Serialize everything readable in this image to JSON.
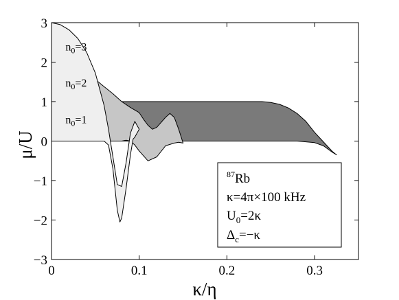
{
  "chart_data": {
    "type": "area",
    "xlabel": "κ/η",
    "ylabel": "μ/U",
    "xlim": [
      0,
      0.35
    ],
    "ylim": [
      -3,
      3
    ],
    "x_ticks": [
      0,
      0.1,
      0.2,
      0.3
    ],
    "x_tick_labels": [
      "0",
      "0.1",
      "0.2",
      "0.3"
    ],
    "y_ticks": [
      -3,
      -2,
      -1,
      0,
      1,
      2,
      3
    ],
    "y_tick_labels": [
      "−3",
      "−2",
      "−1",
      "0",
      "1",
      "2",
      "3"
    ],
    "grid": false,
    "bands": [
      {
        "label_base": "n",
        "label_sub": "0",
        "label_rest": "=1",
        "n0": 1,
        "fill": "#7a7a7a",
        "upper": {
          "x": [
            0,
            0.02,
            0.04,
            0.06,
            0.07,
            0.08,
            0.1,
            0.12,
            0.15,
            0.2,
            0.24,
            0.25,
            0.26,
            0.27,
            0.28,
            0.29,
            0.3,
            0.31,
            0.32,
            0.325
          ],
          "y": [
            1.0,
            1.0,
            1.0,
            1.0,
            1.0,
            1.0,
            1.0,
            1.0,
            1.0,
            1.0,
            1.0,
            0.98,
            0.93,
            0.84,
            0.7,
            0.5,
            0.22,
            -0.02,
            -0.26,
            -0.35
          ]
        },
        "lower": {
          "x": [
            0,
            0.04,
            0.08,
            0.12,
            0.16,
            0.2,
            0.24,
            0.26,
            0.28,
            0.3,
            0.31,
            0.32,
            0.325
          ],
          "y": [
            0.0,
            0.0,
            0.0,
            0.0,
            0.0,
            0.0,
            0.0,
            0.0,
            0.0,
            -0.04,
            -0.12,
            -0.28,
            -0.35
          ]
        }
      },
      {
        "label_base": "n",
        "label_sub": "0",
        "label_rest": "=2",
        "n0": 2,
        "fill": "#c6c6c6",
        "upper": {
          "x": [
            0,
            0.01,
            0.02,
            0.03,
            0.04,
            0.05,
            0.06,
            0.07,
            0.08,
            0.09,
            0.1,
            0.105,
            0.11,
            0.115,
            0.12,
            0.13,
            0.135,
            0.14,
            0.145,
            0.15
          ],
          "y": [
            2.0,
            1.98,
            1.93,
            1.85,
            1.72,
            1.56,
            1.38,
            1.2,
            1.0,
            0.85,
            0.72,
            0.55,
            0.4,
            0.3,
            0.35,
            0.6,
            0.7,
            0.6,
            0.3,
            -0.05
          ]
        },
        "lower": {
          "x": [
            0,
            0.03,
            0.06,
            0.075,
            0.08,
            0.085,
            0.09,
            0.095,
            0.1,
            0.11,
            0.12,
            0.13,
            0.14,
            0.145,
            0.15
          ],
          "y": [
            0.0,
            0.0,
            0.0,
            0.0,
            0.0,
            0.02,
            0.0,
            -0.1,
            -0.25,
            -0.5,
            -0.4,
            -0.12,
            -0.05,
            -0.03,
            -0.05
          ]
        }
      },
      {
        "label_base": "n",
        "label_sub": "0",
        "label_rest": "=3",
        "n0": 3,
        "fill": "#efefef",
        "upper": {
          "x": [
            0,
            0.01,
            0.02,
            0.03,
            0.04,
            0.05,
            0.06,
            0.065,
            0.07,
            0.075,
            0.08,
            0.085,
            0.09,
            0.095,
            0.1
          ],
          "y": [
            3.0,
            2.95,
            2.82,
            2.6,
            2.25,
            1.72,
            0.9,
            0.3,
            -0.4,
            -1.1,
            -1.15,
            -0.55,
            0.2,
            0.5,
            0.3
          ]
        },
        "lower": {
          "x": [
            0,
            0.04,
            0.06,
            0.065,
            0.07,
            0.075,
            0.078,
            0.08,
            0.085,
            0.09,
            0.093,
            0.095,
            0.1
          ],
          "y": [
            0.0,
            0.0,
            0.0,
            -0.1,
            -0.7,
            -1.75,
            -2.05,
            -1.95,
            -1.2,
            -0.35,
            0.05,
            0.1,
            0.3
          ]
        }
      }
    ],
    "legend": {
      "placement": "lower-right",
      "lines": [
        {
          "sup": "87",
          "text": "Rb"
        },
        {
          "text": "κ=4π×100 kHz"
        },
        {
          "base": "U",
          "sub": "0",
          "rest": "=2κ"
        },
        {
          "base": "Δ",
          "sub": "c",
          "rest": "=−κ"
        }
      ]
    }
  }
}
